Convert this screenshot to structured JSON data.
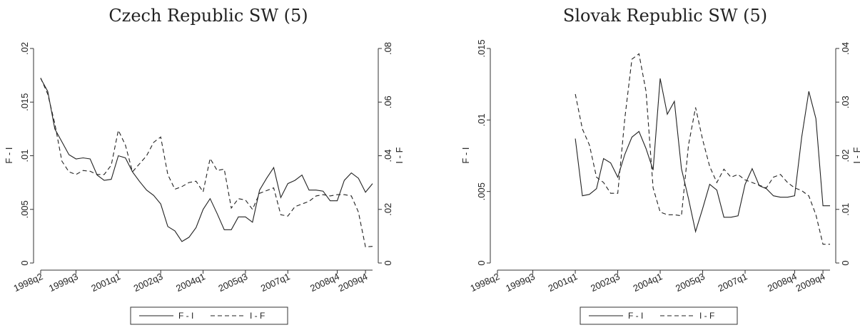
{
  "chart_data": [
    {
      "type": "line",
      "title": "Czech Republic SW (5)",
      "xlabel": "",
      "ylabel_left": "F - I",
      "ylabel_right": "I - F",
      "x_tick_labels": [
        "1998q2",
        "1999q3",
        "2001q1",
        "2002q3",
        "2004q1",
        "2005q3",
        "2007q1",
        "2008q4",
        "2009q4"
      ],
      "y_left_ticks": [
        "0",
        ".005",
        ".01",
        ".015",
        ".02"
      ],
      "y_right_ticks": [
        "0",
        ".02",
        ".04",
        ".06",
        ".08"
      ],
      "ylim_left": [
        0,
        0.02
      ],
      "ylim_right": [
        0,
        0.08
      ],
      "grid": false,
      "legend": "bottom",
      "series": [
        {
          "name": "F - I",
          "axis": "left",
          "style": "solid",
          "values": [
            0.0172,
            0.016,
            0.0125,
            0.0113,
            0.0101,
            0.0097,
            0.0098,
            0.0097,
            0.0082,
            0.0077,
            0.0078,
            0.01,
            0.0098,
            0.0085,
            0.0076,
            0.0068,
            0.0063,
            0.0055,
            0.0034,
            0.003,
            0.002,
            0.0024,
            0.0033,
            0.005,
            0.006,
            0.0046,
            0.0031,
            0.0031,
            0.0043,
            0.0043,
            0.0038,
            0.0068,
            0.0079,
            0.0089,
            0.0061,
            0.0074,
            0.0077,
            0.0082,
            0.0068,
            0.0068,
            0.0067,
            0.0058,
            0.0058,
            0.0077,
            0.0084,
            0.0079,
            0.0066,
            0.0074
          ]
        },
        {
          "name": "I - F",
          "axis": "right",
          "style": "dashed",
          "values": [
            0.069,
            0.063,
            0.052,
            0.038,
            0.034,
            0.033,
            0.0345,
            0.0342,
            0.033,
            0.033,
            0.0365,
            0.0495,
            0.044,
            0.034,
            0.037,
            0.04,
            0.045,
            0.047,
            0.033,
            0.0275,
            0.0285,
            0.03,
            0.0305,
            0.0265,
            0.039,
            0.0345,
            0.035,
            0.0205,
            0.024,
            0.0235,
            0.02,
            0.026,
            0.027,
            0.028,
            0.018,
            0.0175,
            0.021,
            0.022,
            0.023,
            0.025,
            0.0255,
            0.025,
            0.0255,
            0.0255,
            0.025,
            0.019,
            0.006,
            0.0062
          ]
        }
      ]
    },
    {
      "type": "line",
      "title": "Slovak Republic SW (5)",
      "xlabel": "",
      "ylabel_left": "F - I",
      "ylabel_right": "I - F",
      "x_tick_labels": [
        "1998q2",
        "1999q3",
        "2001q1",
        "2002q3",
        "2004q1",
        "2005q3",
        "2007q1",
        "2008q4",
        "2009q4"
      ],
      "y_left_ticks": [
        "0",
        ".005",
        ".01",
        ".015"
      ],
      "y_right_ticks": [
        "0",
        ".01",
        ".02",
        ".03",
        ".04"
      ],
      "ylim_left": [
        0,
        0.015
      ],
      "ylim_right": [
        0,
        0.04
      ],
      "grid": false,
      "legend": "bottom",
      "series": [
        {
          "name": "F - I",
          "axis": "left",
          "style": "solid",
          "values": [
            null,
            null,
            null,
            null,
            null,
            null,
            null,
            null,
            null,
            null,
            null,
            0.0087,
            0.0047,
            0.0048,
            0.0052,
            0.0073,
            0.007,
            0.006,
            0.0076,
            0.0088,
            0.0092,
            0.008,
            0.0065,
            0.0129,
            0.0104,
            0.0113,
            0.0066,
            0.0045,
            0.0022,
            0.0038,
            0.0055,
            0.0051,
            0.0032,
            0.0032,
            0.0033,
            0.0055,
            0.0066,
            0.0054,
            0.0052,
            0.0047,
            0.0046,
            0.0046,
            0.0047,
            0.0088,
            0.012,
            0.0101,
            0.004,
            0.004
          ]
        },
        {
          "name": "I - F",
          "axis": "right",
          "style": "dashed",
          "values": [
            null,
            null,
            null,
            null,
            null,
            null,
            null,
            null,
            null,
            null,
            null,
            0.0315,
            0.025,
            0.022,
            0.016,
            0.015,
            0.013,
            0.013,
            0.027,
            0.038,
            0.039,
            0.032,
            0.014,
            0.0095,
            0.009,
            0.009,
            0.0088,
            0.022,
            0.029,
            0.023,
            0.018,
            0.015,
            0.0175,
            0.016,
            0.0165,
            0.0155,
            0.015,
            0.0145,
            0.014,
            0.016,
            0.0165,
            0.015,
            0.014,
            0.0135,
            0.0125,
            0.009,
            0.0035,
            0.0035
          ]
        }
      ]
    }
  ]
}
